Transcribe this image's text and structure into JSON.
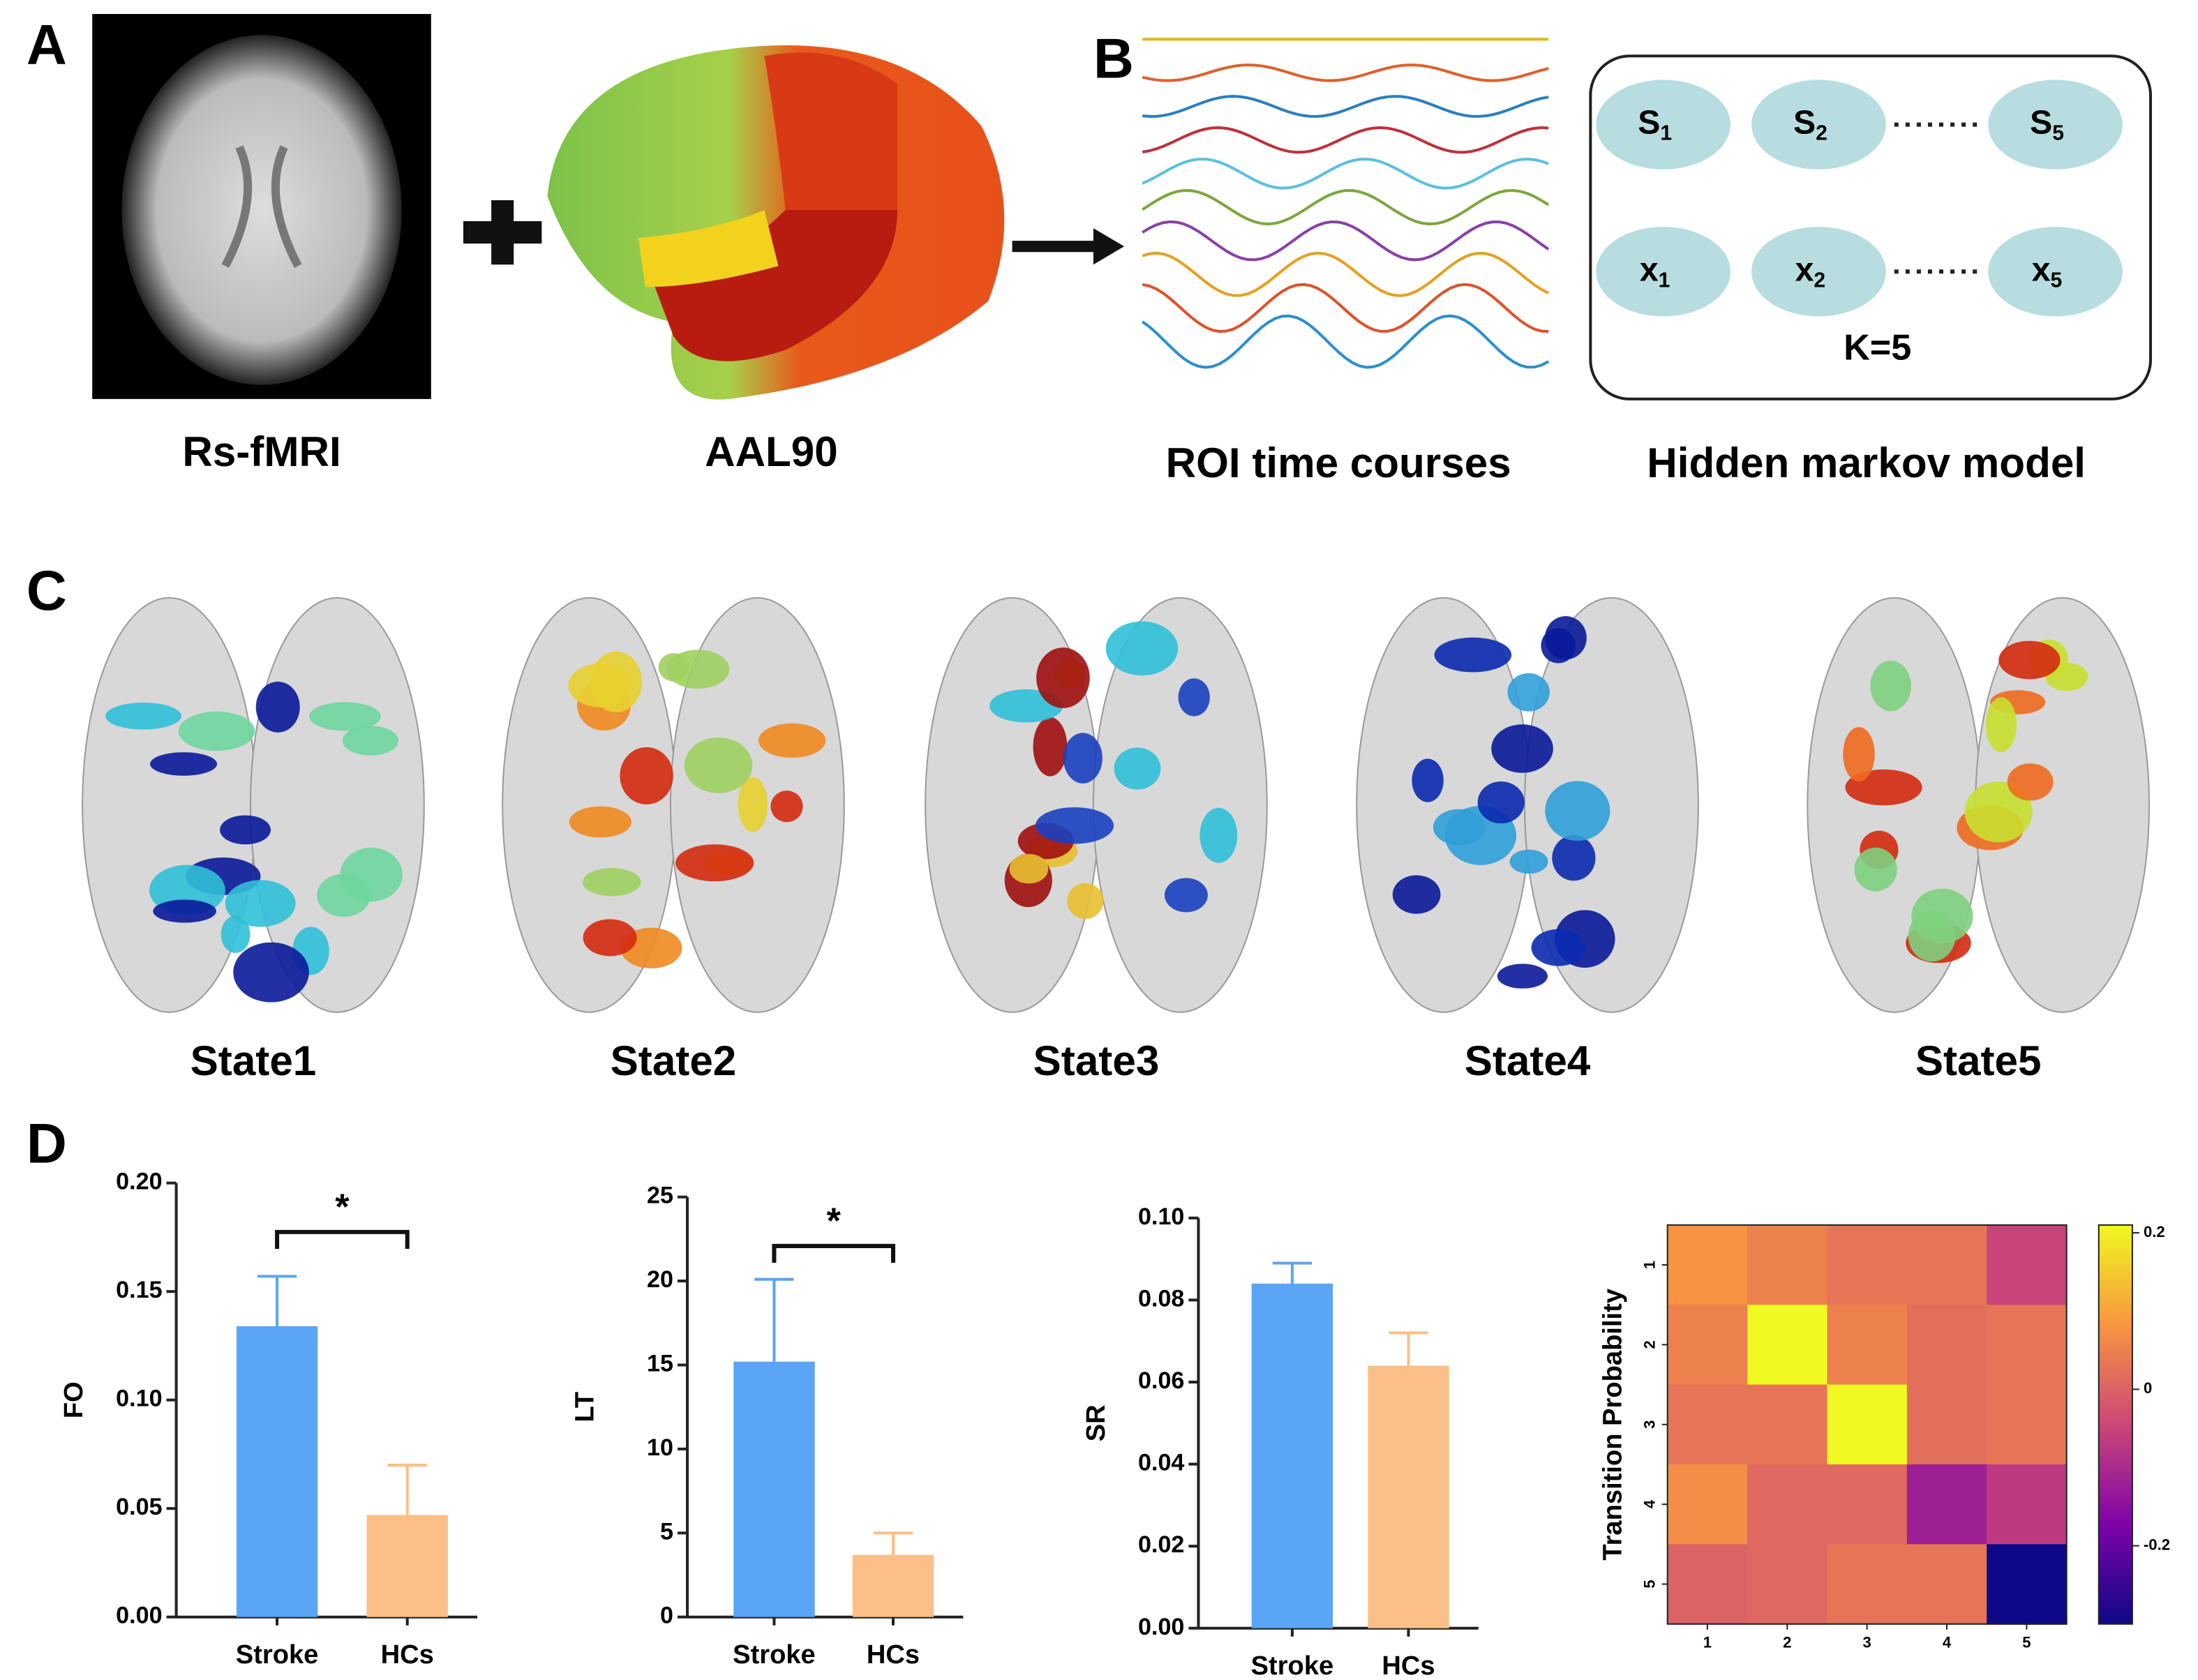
{
  "panels": {
    "a": {
      "label": "A",
      "captions": [
        "Rs-fMRI",
        "AAL90"
      ]
    },
    "b": {
      "label": "B",
      "captions": [
        "ROI time courses",
        "Hidden markov model"
      ],
      "nodes": [
        {
          "label": "S",
          "sub": "1"
        },
        {
          "label": "S",
          "sub": "2"
        },
        {
          "label": "S",
          "sub": "5"
        },
        {
          "label": "x",
          "sub": "1"
        },
        {
          "label": "x",
          "sub": "2"
        },
        {
          "label": "x",
          "sub": "5"
        }
      ],
      "k": "K=5"
    },
    "c": {
      "label": "C",
      "states": [
        "State1",
        "State2",
        "State3",
        "State4",
        "State5"
      ]
    },
    "d": {
      "label": "D"
    }
  },
  "chart_data": [
    {
      "type": "bar",
      "ylabel": "FO",
      "categories": [
        "Stroke",
        "HCs"
      ],
      "values": [
        0.134,
        0.047
      ],
      "errors": [
        0.023,
        0.023
      ],
      "colors": [
        "#5aa5f5",
        "#fbbf87"
      ],
      "ylim": [
        0,
        0.2
      ],
      "yticks": [
        {
          "value": 0,
          "label": "0.00"
        },
        0.05,
        {
          "value": 0.1,
          "label": "0.10"
        },
        0.15,
        {
          "value": 0.2,
          "label": "0.20"
        }
      ],
      "annotation": "*"
    },
    {
      "type": "bar",
      "ylabel": "LT",
      "categories": [
        "Stroke",
        "HCs"
      ],
      "values": [
        15.2,
        3.7
      ],
      "errors": [
        4.9,
        1.3
      ],
      "colors": [
        "#5aa5f5",
        "#fbbf87"
      ],
      "ylim": [
        0,
        25
      ],
      "yticks": [
        0,
        5,
        10,
        15,
        20,
        25
      ],
      "annotation": "*"
    },
    {
      "type": "bar",
      "ylabel": "SR",
      "categories": [
        "Stroke",
        "HCs"
      ],
      "values": [
        0.084,
        0.064
      ],
      "errors": [
        0.005,
        0.008
      ],
      "colors": [
        "#5aa5f5",
        "#fbbf87"
      ],
      "ylim": [
        0,
        0.1
      ],
      "yticks": [
        {
          "value": 0,
          "label": "0.00"
        },
        0.02,
        0.04,
        0.06,
        0.08,
        {
          "value": 0.1,
          "label": "0.10"
        }
      ]
    },
    {
      "type": "heatmap",
      "ylabel": "Transition Probability",
      "xticks": [
        1,
        2,
        3,
        4,
        5
      ],
      "yticks": [
        1,
        2,
        3,
        4,
        5
      ],
      "values": [
        [
          0.08,
          0.05,
          0.03,
          0.03,
          -0.05
        ],
        [
          0.05,
          0.22,
          0.05,
          0.02,
          0.03
        ],
        [
          0.03,
          0.03,
          0.22,
          0.02,
          0.03
        ],
        [
          0.07,
          0.01,
          0.01,
          -0.12,
          -0.07
        ],
        [
          0.0,
          0.01,
          0.03,
          0.03,
          -0.3
        ]
      ],
      "colormap": "plasma",
      "clim": [
        -0.3,
        0.21
      ],
      "cticks": [
        0.2,
        0,
        -0.2
      ]
    }
  ]
}
